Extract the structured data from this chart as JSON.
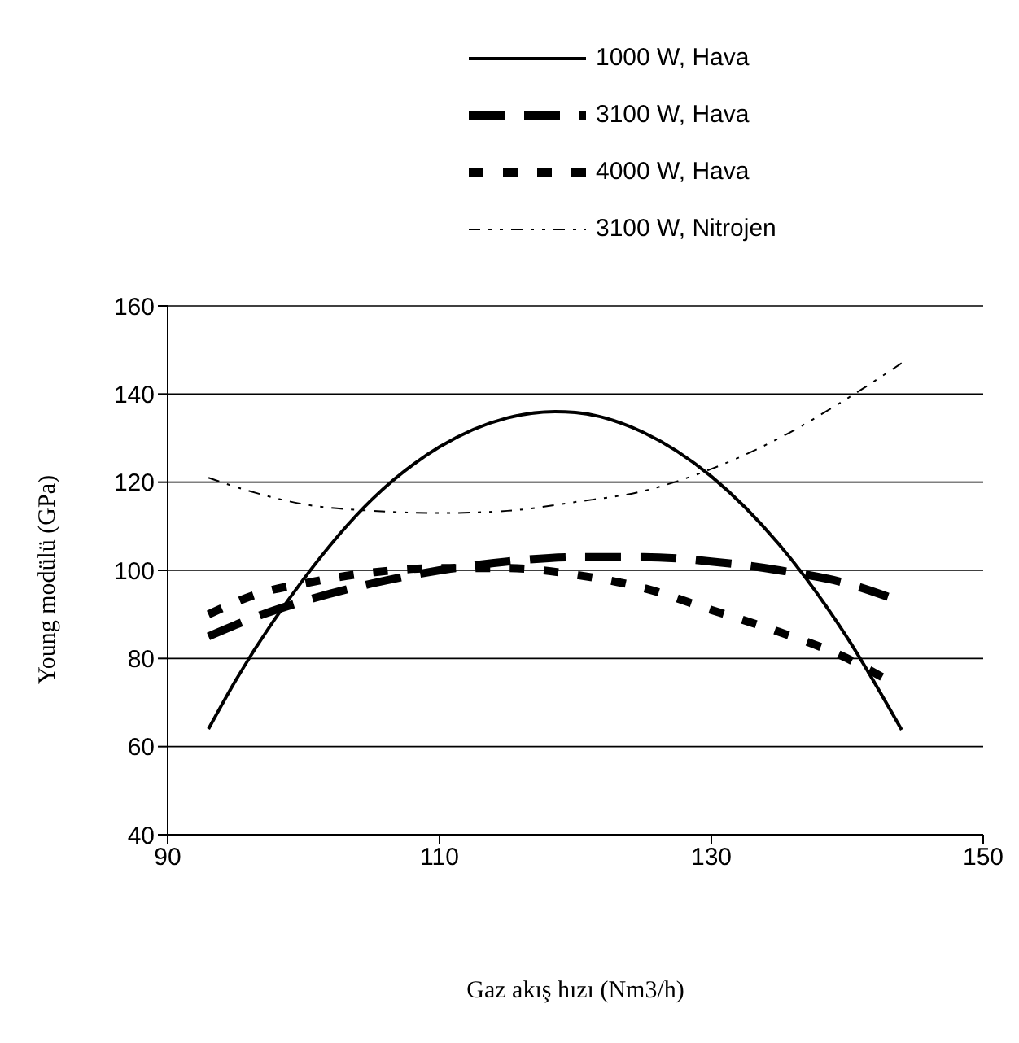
{
  "chart_data": {
    "type": "line",
    "xlabel": "Gaz akış hızı (Nm3/h)",
    "ylabel": "Young modülü (GPa)",
    "xlim": [
      90,
      150
    ],
    "xticks": [
      90,
      110,
      130,
      150
    ],
    "ylim": [
      40,
      160
    ],
    "yticks": [
      40,
      60,
      80,
      100,
      120,
      140,
      160
    ],
    "grid": "y",
    "legend": "top",
    "marker": "none",
    "series": [
      {
        "name": "1000 W, Hava",
        "color": "#000000",
        "line_style": "solid",
        "x": [
          93,
          95,
          100,
          105,
          110,
          115,
          118.5,
          120,
          125,
          130,
          135,
          140,
          144
        ],
        "values": [
          64,
          75,
          98,
          116,
          128,
          134.6,
          136,
          135.8,
          131.3,
          121.3,
          105.8,
          84.7,
          63.8
        ]
      },
      {
        "name": "3100 W, Hava",
        "color": "#000000",
        "line_style": "dashed",
        "x": [
          93,
          97,
          100,
          105,
          110,
          115,
          120,
          125,
          130,
          135,
          140,
          143
        ],
        "values": [
          85,
          90,
          93,
          97,
          100,
          102,
          103,
          103,
          102,
          100,
          97,
          94
        ]
      },
      {
        "name": "4000 W, Hava",
        "color": "#000000",
        "line_style": "dashed",
        "x": [
          93,
          97,
          100,
          105,
          110,
          115,
          120,
          125,
          130,
          135,
          140,
          143
        ],
        "values": [
          90,
          95,
          97,
          99.5,
          100.5,
          100.5,
          99,
          96,
          91,
          86,
          80,
          75
        ]
      },
      {
        "name": "3100 W, Nitrojen",
        "color": "#000000",
        "line_style": "dotted",
        "x": [
          93,
          96,
          100,
          105,
          110,
          115,
          120,
          125,
          130,
          135,
          140,
          144
        ],
        "values": [
          121,
          118,
          115,
          113.5,
          113,
          113.5,
          115.5,
          118,
          123,
          130,
          139,
          147
        ]
      }
    ]
  }
}
